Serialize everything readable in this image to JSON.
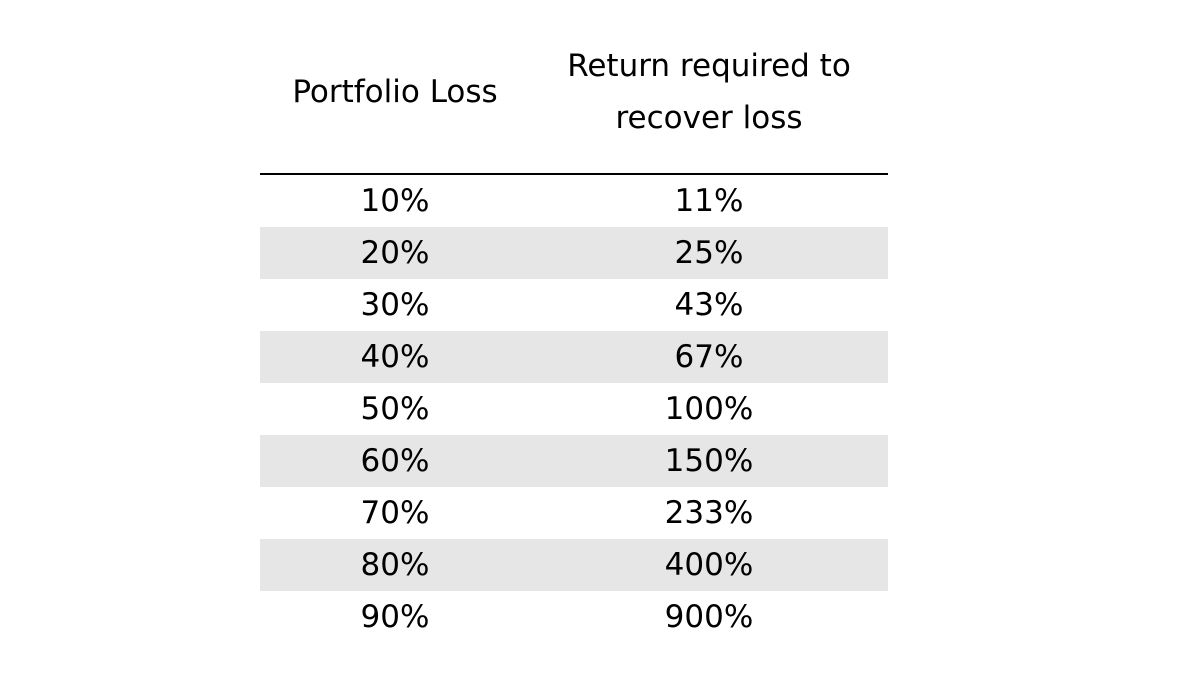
{
  "chart_data": {
    "type": "table",
    "columns": [
      "Portfolio Loss",
      "Return required to recover loss"
    ],
    "header": {
      "col1": "Portfolio Loss",
      "col2_line1": "Return required to",
      "col2_line2": "recover loss"
    },
    "rows": [
      {
        "loss": "10%",
        "recovery": "11%"
      },
      {
        "loss": "20%",
        "recovery": "25%"
      },
      {
        "loss": "30%",
        "recovery": "43%"
      },
      {
        "loss": "40%",
        "recovery": "67%"
      },
      {
        "loss": "50%",
        "recovery": "100%"
      },
      {
        "loss": "60%",
        "recovery": "150%"
      },
      {
        "loss": "70%",
        "recovery": "233%"
      },
      {
        "loss": "80%",
        "recovery": "400%"
      },
      {
        "loss": "90%",
        "recovery": "900%"
      }
    ],
    "loss_values": [
      10,
      20,
      30,
      40,
      50,
      60,
      70,
      80,
      90
    ],
    "recovery_values": [
      11,
      25,
      43,
      67,
      100,
      150,
      233,
      400,
      900
    ],
    "colors": {
      "shaded_row": "#e6e6e6",
      "rule": "#000000"
    }
  }
}
